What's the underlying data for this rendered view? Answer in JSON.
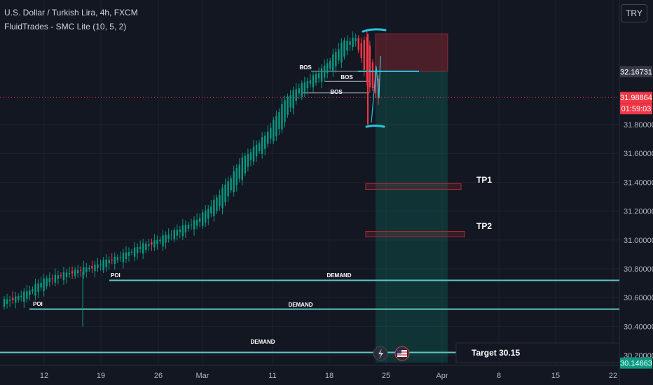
{
  "header": {
    "symbol_title": "U.S. Dollar / Turkish Lira, 4h, FXCM",
    "indicator": "FluidTrades - SMC Lite  (10, 5, 2)"
  },
  "currency_button": "TRY",
  "chart_data": {
    "type": "candlestick",
    "title": "U.S. Dollar / Turkish Lira, 4h, FXCM",
    "y_axis_ticks": [
      31.8,
      31.6,
      31.4,
      31.2,
      31.0,
      30.8,
      30.6,
      30.4,
      30.2
    ],
    "y_axis_tick_labels": [
      "31.80000",
      "31.60000",
      "31.40000",
      "31.20000",
      "31.00000",
      "30.80000",
      "30.60000",
      "30.40000",
      "30.20000"
    ],
    "ylim": [
      30.13,
      32.48
    ],
    "x_axis_ticks": [
      "12",
      "19",
      "26",
      "Mar",
      "11",
      "18",
      "25",
      "Apr",
      "8",
      "15",
      "22"
    ],
    "price_tags": [
      {
        "value": "32.16731",
        "color": "#363a45"
      },
      {
        "value": "31.98864",
        "color": "#f23645"
      },
      {
        "value": "01:59:03",
        "color": "#f23645"
      },
      {
        "value": "30.14663",
        "color": "#089981"
      }
    ],
    "series": [
      {
        "x": "2024-02-06",
        "open": 30.56,
        "close": 30.58,
        "high": 30.61,
        "low": 30.5
      },
      {
        "x": "2024-02-07",
        "open": 30.58,
        "close": 30.6,
        "high": 30.63,
        "low": 30.54
      },
      {
        "x": "2024-02-08",
        "open": 30.6,
        "close": 30.64,
        "high": 30.74,
        "low": 30.52
      },
      {
        "x": "2024-02-09",
        "open": 30.64,
        "close": 30.7,
        "high": 30.76,
        "low": 30.6
      },
      {
        "x": "2024-02-12",
        "open": 30.7,
        "close": 30.74,
        "high": 30.78,
        "low": 30.66
      },
      {
        "x": "2024-02-13",
        "open": 30.74,
        "close": 30.76,
        "high": 30.8,
        "low": 30.68
      },
      {
        "x": "2024-02-14",
        "open": 30.76,
        "close": 30.78,
        "high": 30.82,
        "low": 30.72
      },
      {
        "x": "2024-02-15",
        "open": 30.78,
        "close": 30.8,
        "high": 30.84,
        "low": 30.4
      },
      {
        "x": "2024-02-16",
        "open": 30.8,
        "close": 30.82,
        "high": 30.86,
        "low": 30.74
      },
      {
        "x": "2024-02-19",
        "open": 30.82,
        "close": 30.86,
        "high": 30.92,
        "low": 30.76
      },
      {
        "x": "2024-02-20",
        "open": 30.86,
        "close": 30.88,
        "high": 30.94,
        "low": 30.78
      },
      {
        "x": "2024-02-21",
        "open": 30.88,
        "close": 30.92,
        "high": 30.98,
        "low": 30.84
      },
      {
        "x": "2024-02-22",
        "open": 30.92,
        "close": 30.96,
        "high": 31.02,
        "low": 30.86
      },
      {
        "x": "2024-02-23",
        "open": 30.96,
        "close": 30.98,
        "high": 31.04,
        "low": 30.9
      },
      {
        "x": "2024-02-26",
        "open": 30.98,
        "close": 31.02,
        "high": 31.08,
        "low": 30.94
      },
      {
        "x": "2024-02-27",
        "open": 31.02,
        "close": 31.06,
        "high": 31.1,
        "low": 30.96
      },
      {
        "x": "2024-02-28",
        "open": 31.06,
        "close": 31.1,
        "high": 31.16,
        "low": 31.0
      },
      {
        "x": "2024-02-29",
        "open": 31.1,
        "close": 31.14,
        "high": 31.2,
        "low": 31.06
      },
      {
        "x": "2024-03-01",
        "open": 31.14,
        "close": 31.22,
        "high": 31.28,
        "low": 31.08
      },
      {
        "x": "2024-03-04",
        "open": 31.22,
        "close": 31.32,
        "high": 31.38,
        "low": 31.16
      },
      {
        "x": "2024-03-05",
        "open": 31.32,
        "close": 31.44,
        "high": 31.5,
        "low": 31.26
      },
      {
        "x": "2024-03-06",
        "open": 31.44,
        "close": 31.56,
        "high": 31.62,
        "low": 31.38
      },
      {
        "x": "2024-03-07",
        "open": 31.56,
        "close": 31.64,
        "high": 31.7,
        "low": 31.5
      },
      {
        "x": "2024-03-08",
        "open": 31.64,
        "close": 31.72,
        "high": 31.78,
        "low": 31.58
      },
      {
        "x": "2024-03-11",
        "open": 31.72,
        "close": 31.86,
        "high": 31.92,
        "low": 31.66
      },
      {
        "x": "2024-03-12",
        "open": 31.86,
        "close": 32.0,
        "high": 32.04,
        "low": 31.8
      },
      {
        "x": "2024-03-13",
        "open": 32.0,
        "close": 32.06,
        "high": 32.1,
        "low": 31.96
      },
      {
        "x": "2024-03-14",
        "open": 32.06,
        "close": 32.12,
        "high": 32.18,
        "low": 32.0
      },
      {
        "x": "2024-03-15",
        "open": 32.12,
        "close": 32.18,
        "high": 32.24,
        "low": 32.0
      },
      {
        "x": "2024-03-18",
        "open": 32.18,
        "close": 32.28,
        "high": 32.34,
        "low": 32.1
      },
      {
        "x": "2024-03-19",
        "open": 32.28,
        "close": 32.38,
        "high": 32.42,
        "low": 32.2
      },
      {
        "x": "2024-03-20",
        "open": 32.38,
        "close": 32.4,
        "high": 32.44,
        "low": 32.26
      },
      {
        "x": "2024-03-21",
        "open": 32.4,
        "close": 32.1,
        "high": 32.44,
        "low": 31.78
      },
      {
        "x": "2024-03-22",
        "open": 32.1,
        "close": 31.99,
        "high": 32.2,
        "low": 31.88
      }
    ],
    "annotations": {
      "labels": [
        "BOS",
        "BOS",
        "BOS",
        "POI",
        "POI",
        "DEMAND",
        "DEMAND",
        "DEMAND",
        "TP1",
        "TP2",
        "Target 30.15"
      ],
      "bos_levels": [
        32.17,
        32.1,
        32.02
      ],
      "demand_levels": [
        30.72,
        30.52,
        30.22
      ],
      "tp1": [
        31.37,
        31.39
      ],
      "tp2": [
        31.04,
        31.06
      ],
      "stop_zone": [
        32.17,
        32.43
      ],
      "target_zone": [
        30.15,
        32.17
      ],
      "target_value": 30.15
    },
    "grid": true,
    "legend": "none"
  }
}
